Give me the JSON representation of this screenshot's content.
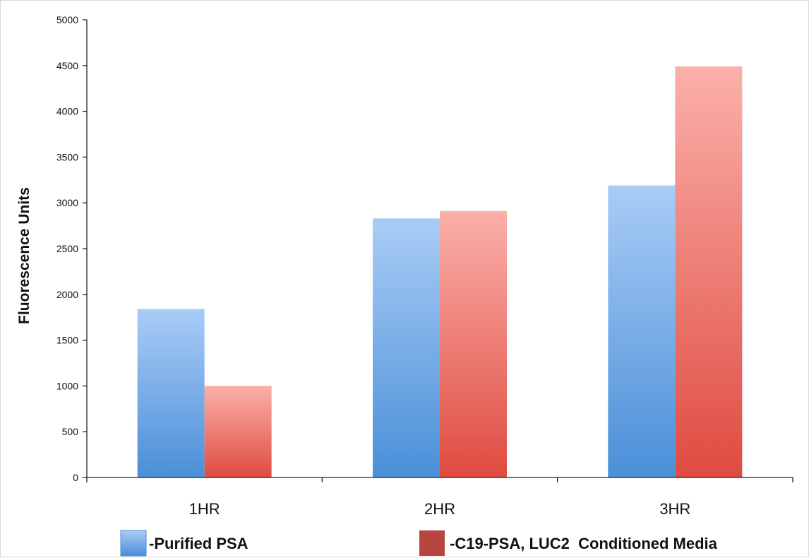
{
  "chart_data": {
    "type": "bar",
    "title": "",
    "xlabel": "",
    "ylabel": "Fluorescence Units",
    "ylim": [
      0,
      5000
    ],
    "yticks": [
      0,
      500,
      1000,
      1500,
      2000,
      2500,
      3000,
      3500,
      4000,
      4500,
      5000
    ],
    "categories": [
      "1HR",
      "2HR",
      "3HR"
    ],
    "series": [
      {
        "name": "-Purified PSA",
        "values": [
          1840,
          2830,
          3190
        ],
        "color_top": "#a9ccf6",
        "color_bottom": "#4a8fd8",
        "legend_color": "#5f9fe6"
      },
      {
        "name": "-C19-PSA, LUC2  Conditioned Media",
        "values": [
          1000,
          2910,
          4490
        ],
        "color_top": "#fbb0aa",
        "color_bottom": "#df4b40",
        "legend_color": "#b8463e"
      }
    ],
    "grid": false,
    "legend": "bottom"
  }
}
